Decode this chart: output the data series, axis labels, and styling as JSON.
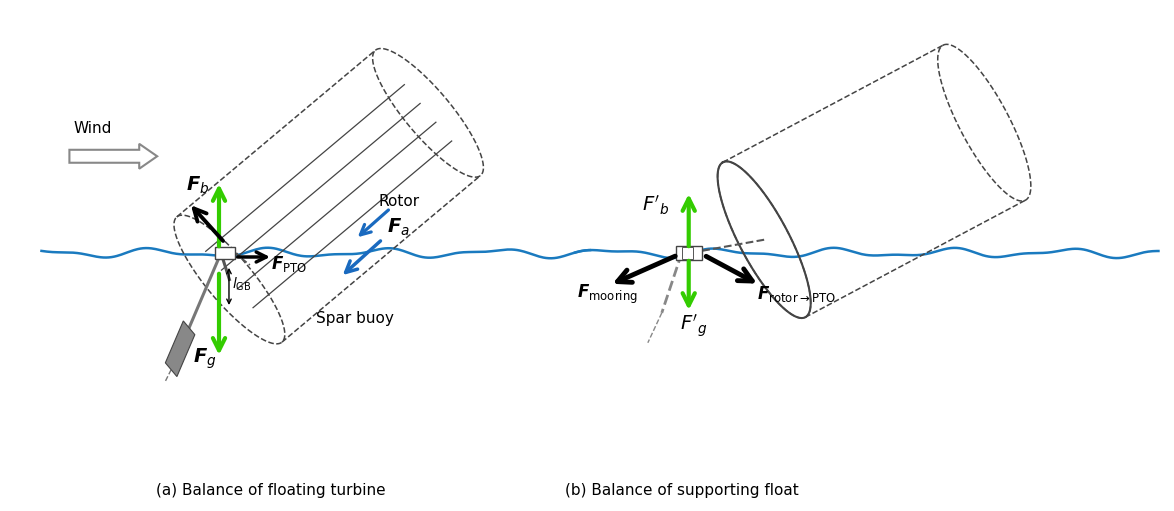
{
  "bg_color": "#ffffff",
  "water_color": "#1a7abf",
  "green_color": "#33cc00",
  "blue_arrow_color": "#1a6abf",
  "fig_width": 11.74,
  "fig_height": 5.11,
  "caption_a": "(a) Balance of floating turbine",
  "caption_b": "(b) Balance of supporting float",
  "wind_label": "Wind",
  "rotor_label": "Rotor",
  "spar_buoy_label": "Spar buoy"
}
